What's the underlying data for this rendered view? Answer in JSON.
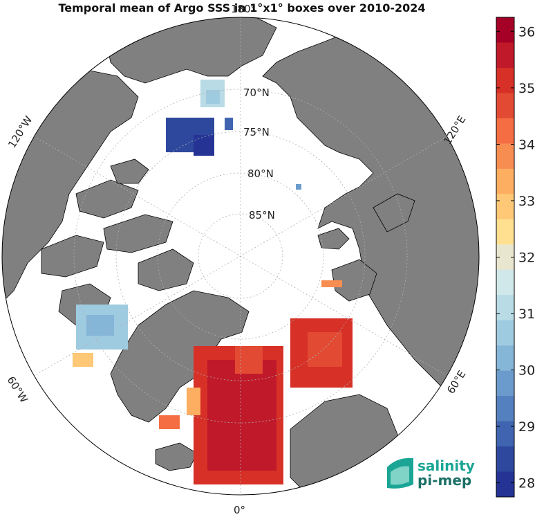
{
  "title": "Temporal mean of Argo SSS in 1°x1° boxes over 2010-2024",
  "map": {
    "projection": "north-polar-stereographic",
    "latitude_labels": [
      "70°N",
      "75°N",
      "80°N",
      "85°N"
    ],
    "longitude_labels": {
      "top": "180°",
      "bottom": "0°",
      "left_upper": "120°W",
      "left_lower": "60°W",
      "right_upper": "120°E",
      "right_lower": "60°E"
    },
    "colors": {
      "land": "#808080",
      "ocean": "#ffffff",
      "coastline": "#000000",
      "graticule": "#b0b0b0"
    }
  },
  "colorbar": {
    "min": 27.75,
    "max": 36.25,
    "tick_labels": [
      "36",
      "35",
      "34",
      "33",
      "32",
      "31",
      "30",
      "29",
      "28"
    ],
    "colors": [
      "#a50026",
      "#c0192a",
      "#d73027",
      "#e34a33",
      "#f46d43",
      "#f88d52",
      "#fdae61",
      "#fec877",
      "#fee090",
      "#e9e6cf",
      "#d0e8ea",
      "#b8dbe6",
      "#9fcbe1",
      "#85b6d8",
      "#6b9bcc",
      "#5580bf",
      "#4064b0",
      "#2e489d",
      "#253494"
    ]
  },
  "logo": {
    "line1": "salinity",
    "line2": "pi-mep",
    "color": "#1aa595"
  }
}
